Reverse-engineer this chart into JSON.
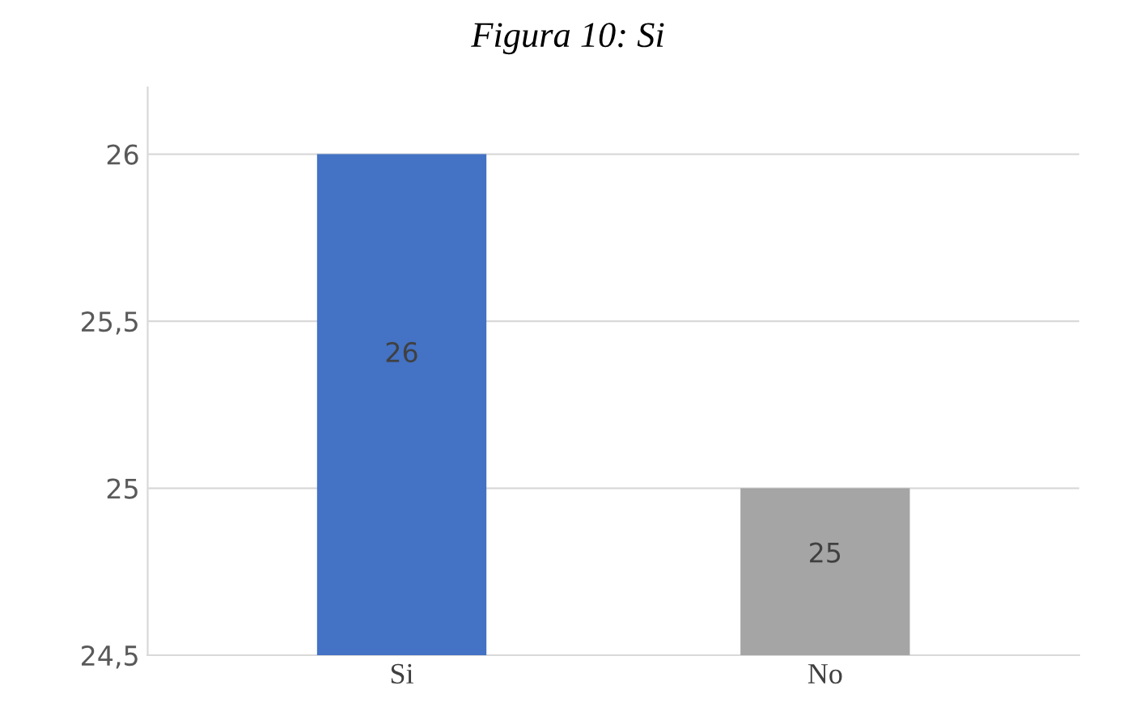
{
  "chart_data": {
    "type": "bar",
    "title": "Figura 10: Si",
    "categories": [
      "Si",
      "No"
    ],
    "values": [
      26,
      25
    ],
    "colors": [
      "#4472c4",
      "#a5a5a5"
    ],
    "ylim": [
      24.5,
      26.2
    ],
    "yticks": [
      {
        "value": 24.5,
        "label": "24,5"
      },
      25,
      {
        "value": 25.5,
        "label": "25,5"
      },
      26
    ],
    "grid": "y",
    "data_labels": true
  }
}
